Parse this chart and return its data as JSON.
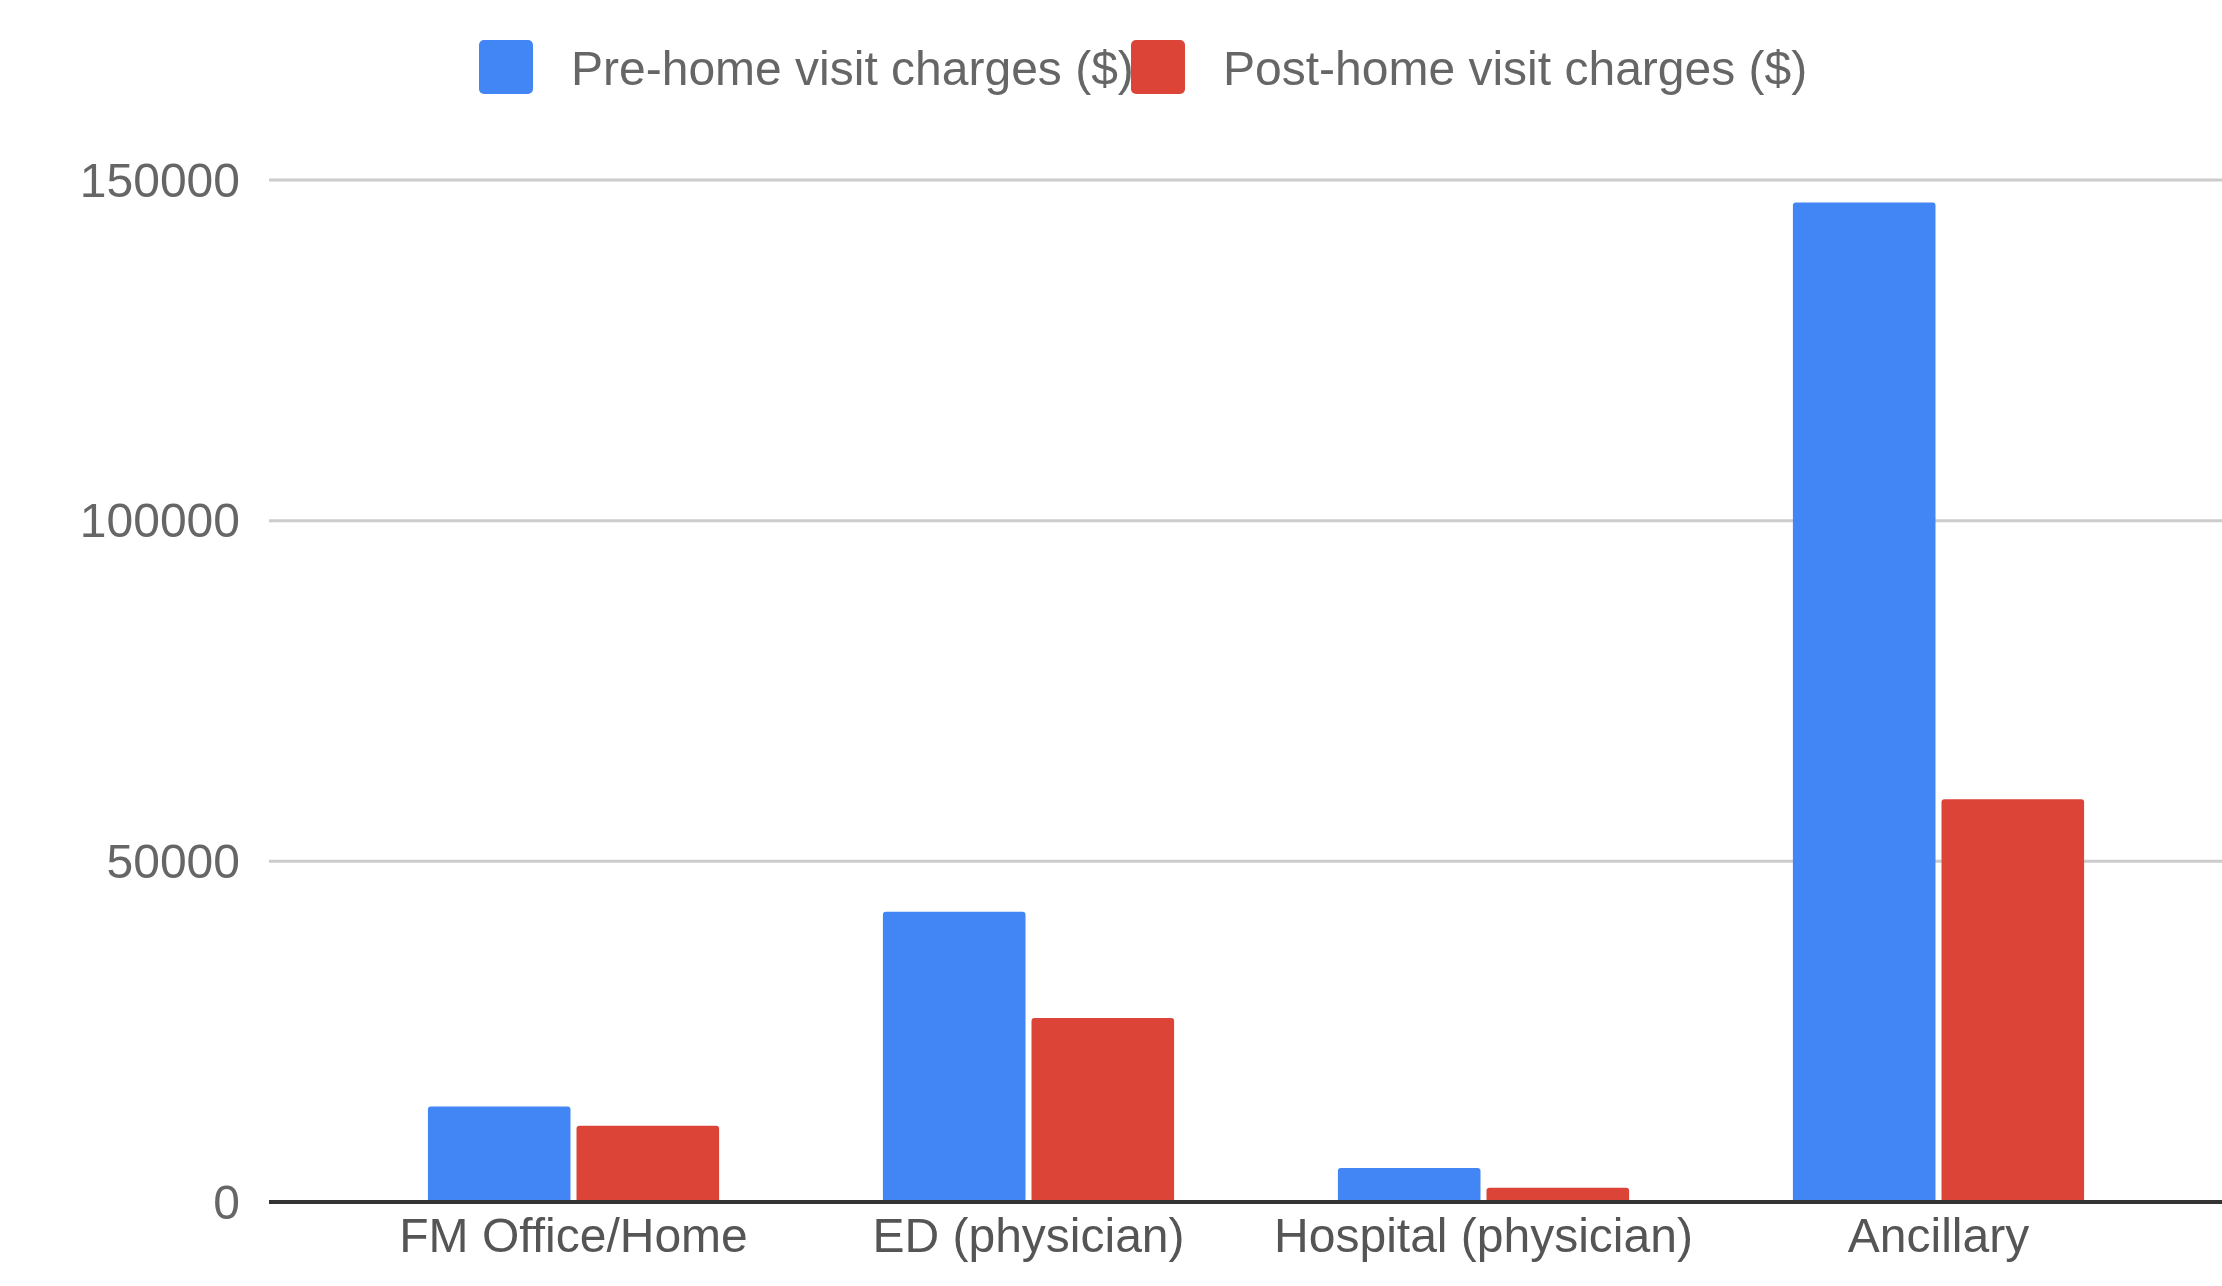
{
  "chart_data": {
    "type": "bar",
    "categories": [
      "FM Office/Home",
      "ED (physician)",
      "Hospital (physician)",
      "Ancillary"
    ],
    "series": [
      {
        "name": "Pre-home visit charges ($)",
        "color": "#4285f4",
        "values": [
          14000,
          42600,
          5000,
          146700
        ]
      },
      {
        "name": "Post-home visit charges ($)",
        "color": "#db4437",
        "values": [
          11200,
          27000,
          2100,
          59100
        ]
      }
    ],
    "ylim": [
      0,
      150000
    ],
    "yticks": [
      0,
      50000,
      100000,
      150000
    ],
    "grid": "y",
    "legend": "top"
  }
}
